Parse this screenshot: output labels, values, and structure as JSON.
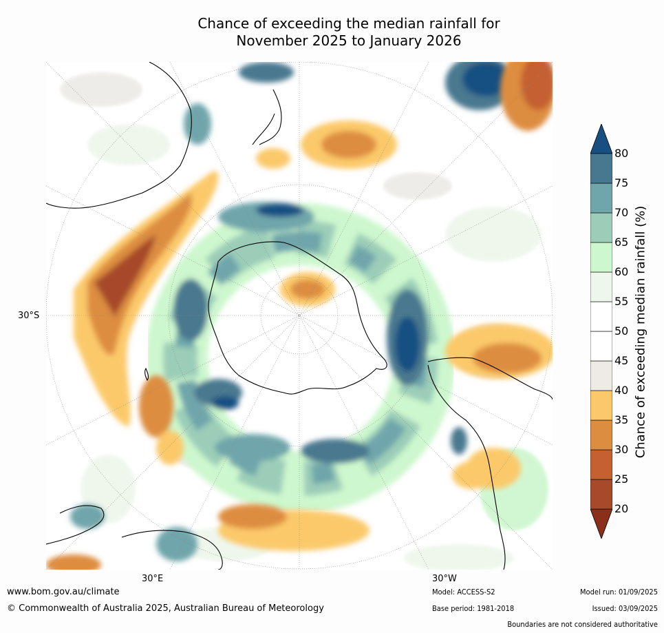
{
  "title": {
    "line1": "Chance of exceeding the median rainfall for",
    "line2": "November 2025 to January 2026"
  },
  "map": {
    "projection": "south-polar-stereographic",
    "lat_label": "30°S",
    "lon_label_left": "30°E",
    "lon_label_right": "30°W",
    "colors": {
      "c20": "#8b2e1a",
      "c25": "#a64a2a",
      "c30": "#c56130",
      "c35": "#dd8d40",
      "c40": "#fbc96a",
      "c45": "#ecebe6",
      "c50": "#ffffff",
      "c55": "#ffffff",
      "c60": "#eef7ec",
      "c65": "#cdf7ce",
      "c70": "#9ccdb8",
      "c75": "#6fa6ab",
      "c80": "#48788f",
      "c85": "#174f82"
    },
    "features": [
      "Antarctica",
      "Australia",
      "New Zealand",
      "South America",
      "Africa",
      "Madagascar"
    ]
  },
  "colorbar": {
    "label": "Chance of exceeding median rainfall (%)",
    "ticks": [
      "20",
      "25",
      "30",
      "35",
      "40",
      "45",
      "50",
      "55",
      "60",
      "65",
      "70",
      "75",
      "80"
    ],
    "colors": [
      "#8b2e1a",
      "#a64a2a",
      "#c56130",
      "#dd8d40",
      "#fbc96a",
      "#ecebe6",
      "#ffffff",
      "#ffffff",
      "#eef7ec",
      "#cdf7ce",
      "#9ccdb8",
      "#6fa6ab",
      "#48788f",
      "#174f82"
    ]
  },
  "footer": {
    "url": "www.bom.gov.au/climate",
    "copyright": "© Commonwealth of Australia 2025, Australian Bureau of Meteorology",
    "model": "Model: ACCESS-S2",
    "base_period": "Base period: 1981-2018",
    "model_run": "Model run: 01/09/2025",
    "issued": "Issued: 03/09/2025",
    "disclaimer": "Boundaries are not considered authoritative"
  }
}
